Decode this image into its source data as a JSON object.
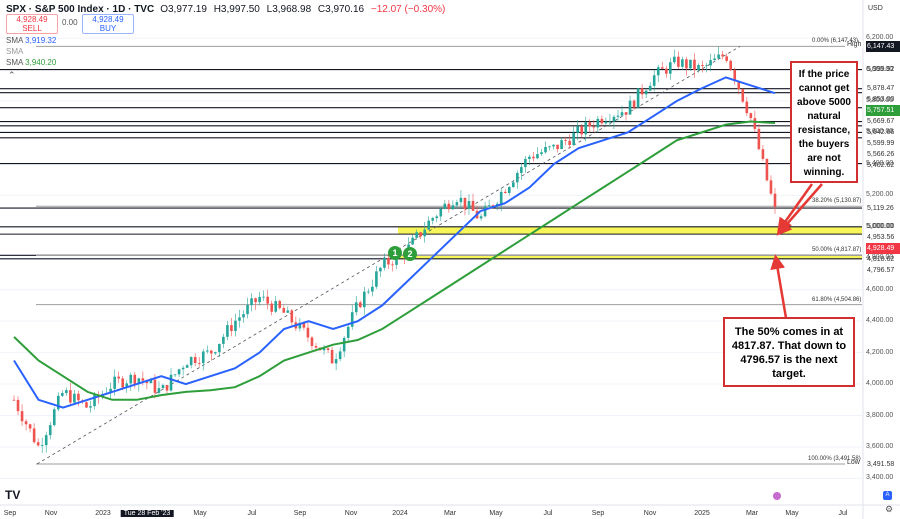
{
  "header": {
    "title": "SPX · S&P 500 Index · 1D · TVC",
    "ohlc": {
      "o": "O3,977.19",
      "h": "H3,997.50",
      "l": "L3,968.98",
      "c": "C3,970.16",
      "chg": "−12.07 (−0.30%)"
    },
    "sell": {
      "price": "4,928.49",
      "label": "SELL"
    },
    "spread": "0.00",
    "buy": {
      "price": "4,928.49",
      "label": "BUY"
    }
  },
  "indicators": [
    {
      "name": "SMA",
      "value": "3,919.32",
      "color": "#2962ff"
    },
    {
      "name": "SMA",
      "value": "",
      "color": "#999999"
    },
    {
      "name": "SMA",
      "value": "3,940.20",
      "color": "#2e9e3a"
    }
  ],
  "currency": "USD",
  "price_axis": {
    "ticks": [
      "6,200.00",
      "6,000.00",
      "5,800.00",
      "5,600.00",
      "5,400.00",
      "5,200.00",
      "5,000.00",
      "4,800.00",
      "4,600.00",
      "4,400.00",
      "4,200.00",
      "4,000.00",
      "3,800.00",
      "3,600.00",
      "3,400.00"
    ],
    "labels": [
      {
        "text": "6,147.43",
        "style": "dark",
        "tag": "High"
      },
      {
        "text": "5,999.92",
        "style": "plain"
      },
      {
        "text": "5,878.47",
        "style": "plain"
      },
      {
        "text": "5,853.00",
        "style": "plain"
      },
      {
        "text": "5,757.51",
        "style": "green"
      },
      {
        "text": "5,669.67",
        "style": "plain"
      },
      {
        "text": "5,642.66",
        "style": "plain"
      },
      {
        "text": "5,599.99",
        "style": "plain"
      },
      {
        "text": "5,566.26",
        "style": "plain"
      },
      {
        "text": "5,402.62",
        "style": "plain"
      },
      {
        "text": "5,119.26",
        "style": "plain"
      },
      {
        "text": "5,000.00",
        "style": "plain"
      },
      {
        "text": "4,953.56",
        "style": "plain"
      },
      {
        "text": "4,928.49",
        "style": "red"
      },
      {
        "text": "4,818.62",
        "style": "plain"
      },
      {
        "text": "4,796.57",
        "style": "plain"
      },
      {
        "text": "3,491.58",
        "style": "plain",
        "tag": "Low"
      }
    ]
  },
  "fib_labels": [
    "0.00% (6,147.43)",
    "38.20% (5,130.87)",
    "50.00% (4,817.87)",
    "61.80% (4,504.86)",
    "100.00% (3,491.58)"
  ],
  "time_axis": [
    "Sep",
    "Nov",
    "2023",
    "Tue 28 Feb '23",
    "May",
    "Jul",
    "Sep",
    "Nov",
    "2024",
    "Mar",
    "May",
    "Jul",
    "Sep",
    "Nov",
    "2025",
    "Mar",
    "May",
    "Jul"
  ],
  "markers": [
    "1",
    "2"
  ],
  "annotations": {
    "top": "If the price cannot get above 5000 natural resistance, the buyers are not winning.",
    "bottom": "The 50% comes in at 4817.87. That down to 4796.57 is the next target."
  },
  "logo": "TV",
  "chart_data": {
    "type": "candlestick",
    "title": "SPX · S&P 500 Index · 1D · TVC",
    "x": [
      "Sep 2022",
      "Oct 2022",
      "Nov 2022",
      "Dec 2022",
      "Jan 2023",
      "Feb 2023",
      "Mar 2023",
      "Apr 2023",
      "May 2023",
      "Jun 2023",
      "Jul 2023",
      "Aug 2023",
      "Sep 2023",
      "Oct 2023",
      "Nov 2023",
      "Dec 2023",
      "Jan 2024",
      "Feb 2024",
      "Mar 2024",
      "Apr 2024",
      "May 2024",
      "Jun 2024",
      "Jul 2024",
      "Aug 2024",
      "Sep 2024",
      "Oct 2024",
      "Nov 2024",
      "Dec 2024",
      "Jan 2025",
      "Feb 2025",
      "Mar 2025",
      "Apr 2025"
    ],
    "series": [
      {
        "name": "SPX",
        "values": [
          3900,
          3600,
          3950,
          3850,
          4000,
          4050,
          3950,
          4150,
          4200,
          4400,
          4550,
          4450,
          4300,
          4150,
          4500,
          4750,
          4850,
          5050,
          5200,
          5050,
          5250,
          5450,
          5500,
          5600,
          5700,
          5750,
          5950,
          6050,
          6000,
          6100,
          5700,
          5100
        ]
      },
      {
        "values": [
          4150,
          3900,
          3850,
          3900,
          3950,
          4000,
          4050,
          4000,
          4050,
          4100,
          4200,
          4350,
          4400,
          4350,
          4400,
          4500,
          4650,
          4800,
          4950,
          5100,
          5150,
          5250,
          5400,
          5500,
          5550,
          5600,
          5700,
          5800,
          5880,
          5950,
          5900,
          5850
        ]
      },
      {
        "values": [
          4300,
          4150,
          4050,
          3950,
          3900,
          3900,
          3930,
          3950,
          3960,
          3980,
          4050,
          4150,
          4200,
          4250,
          4280,
          4350,
          4450,
          4550,
          4650,
          4750,
          4850,
          4950,
          5050,
          5150,
          5250,
          5350,
          5450,
          5550,
          5600,
          5650,
          5670,
          5660
        ]
      }
    ],
    "horizontal_levels": [
      6147.43,
      5999.92,
      5878.47,
      5853.0,
      5757.51,
      5669.67,
      5642.66,
      5599.99,
      5566.26,
      5402.62,
      5119.26,
      5000.0,
      4953.56,
      4818.62,
      4796.57,
      3491.58
    ],
    "fib_levels": [
      {
        "label": "0.00%",
        "value": 6147.43
      },
      {
        "label": "38.20%",
        "value": 5130.87
      },
      {
        "label": "50.00%",
        "value": 4817.87
      },
      {
        "label": "61.80%",
        "value": 4504.86
      },
      {
        "label": "100.00%",
        "value": 3491.58
      }
    ],
    "support_zones": [
      [
        4953.56,
        5000.0
      ],
      [
        4796.57,
        4818.62
      ]
    ],
    "ylim": [
      3400,
      6250
    ],
    "grid": true
  }
}
